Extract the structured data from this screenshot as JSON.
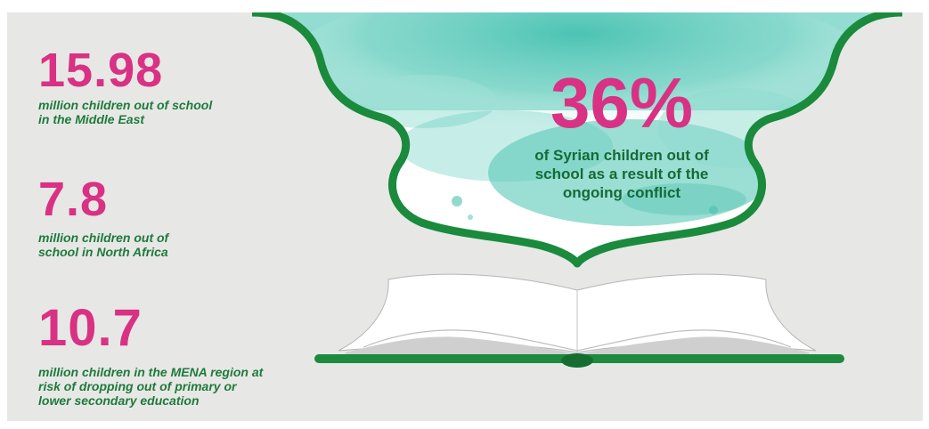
{
  "stats": [
    {
      "number": "15.98",
      "description": [
        "million children out of school",
        "in the Middle East"
      ]
    },
    {
      "number": "7.8",
      "description": [
        "million children out of",
        "school in North Africa"
      ]
    },
    {
      "number": "10.7",
      "description": [
        "million children in the MENA region at",
        "risk of dropping out of primary or",
        "lower secondary education"
      ]
    }
  ],
  "banner": {
    "number": "36%",
    "text": [
      "of Syrian children out of",
      "school as a result of the",
      "ongoing conflict"
    ]
  },
  "colors": {
    "background": "#e7e8e6",
    "accent_pink": "#d93184",
    "green": "#1e8a3e",
    "watercolor": "#5cc9b8"
  },
  "icons": [
    "open-book-icon",
    "watercolor-banner-frame"
  ]
}
